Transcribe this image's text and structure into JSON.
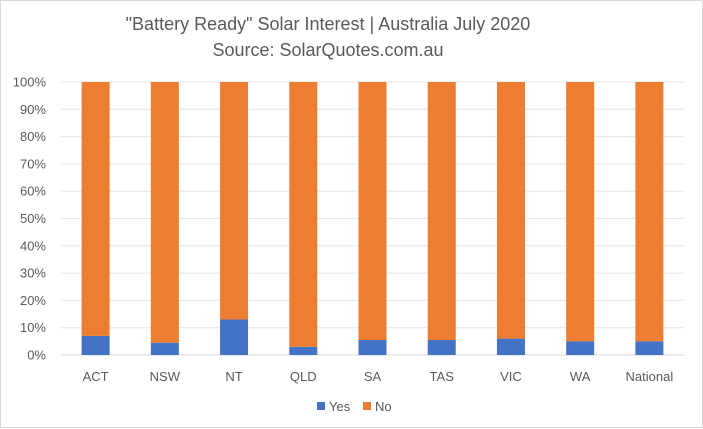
{
  "chart_data": {
    "type": "bar",
    "stacked": "percent",
    "title": "\"Battery Ready\" Solar Interest | Australia July 2020",
    "subtitle": "Source: SolarQuotes.com.au",
    "categories": [
      "ACT",
      "NSW",
      "NT",
      "QLD",
      "SA",
      "TAS",
      "VIC",
      "WA",
      "National"
    ],
    "series": [
      {
        "name": "Yes",
        "color": "#4472c4",
        "values": [
          7,
          4.5,
          13,
          3,
          5.5,
          5.5,
          6,
          5,
          5
        ]
      },
      {
        "name": "No",
        "color": "#ed7d31",
        "values": [
          93,
          95.5,
          87,
          97,
          94.5,
          94.5,
          94,
          95,
          95
        ]
      }
    ],
    "y_ticks": [
      "0%",
      "10%",
      "20%",
      "30%",
      "40%",
      "50%",
      "60%",
      "70%",
      "80%",
      "90%",
      "100%"
    ],
    "ylim": [
      0,
      100
    ],
    "grid": true,
    "legend_position": "bottom"
  }
}
